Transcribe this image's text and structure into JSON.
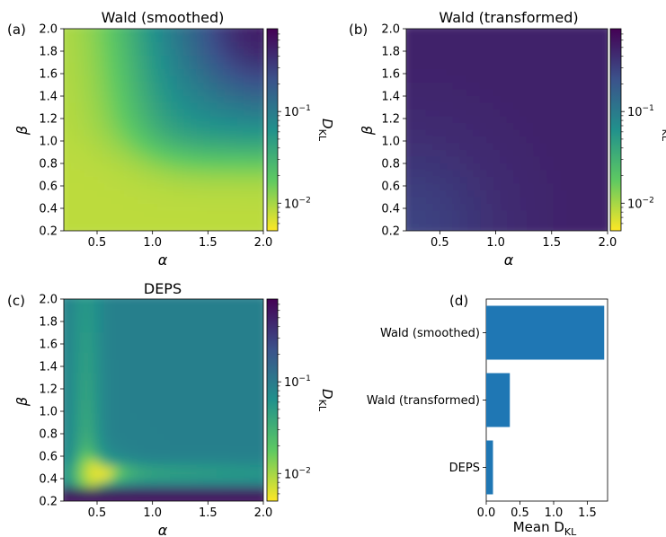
{
  "figure": {
    "colormap_stops": [
      "#fde725",
      "#5ec962",
      "#21918c",
      "#3b528b",
      "#440154"
    ]
  },
  "chart_data": [
    {
      "panel": "(a)",
      "type": "heatmap",
      "title": "Wald (smoothed)",
      "xlabel": "α",
      "ylabel": "β",
      "xlim": [
        0.2,
        2.0
      ],
      "ylim": [
        0.2,
        2.0
      ],
      "xticks": [
        "0.5",
        "1.0",
        "1.5",
        "2.0"
      ],
      "yticks": [
        "0.2",
        "0.4",
        "0.6",
        "0.8",
        "1.0",
        "1.2",
        "1.4",
        "1.6",
        "1.8",
        "2.0"
      ],
      "colorbar": {
        "label": "D",
        "label_sub": "KL",
        "scale": "log",
        "range": [
          0.005,
          0.8
        ],
        "ticks": [
          "10",
          "10"
        ],
        "tick_exps": [
          "−1",
          "−2"
        ]
      }
    },
    {
      "panel": "(b)",
      "type": "heatmap",
      "title": "Wald (transformed)",
      "xlabel": "α",
      "ylabel": "β",
      "xlim": [
        0.2,
        2.0
      ],
      "ylim": [
        0.2,
        2.0
      ],
      "xticks": [
        "0.5",
        "1.0",
        "1.5",
        "2.0"
      ],
      "yticks": [
        "0.2",
        "0.4",
        "0.6",
        "0.8",
        "1.0",
        "1.2",
        "1.4",
        "1.6",
        "1.8",
        "2.0"
      ],
      "colorbar": {
        "label": "D",
        "label_sub": "KL",
        "scale": "log",
        "range": [
          0.005,
          0.8
        ],
        "ticks": [
          "10",
          "10"
        ],
        "tick_exps": [
          "−1",
          "−2"
        ]
      }
    },
    {
      "panel": "(c)",
      "type": "heatmap",
      "title": "DEPS",
      "xlabel": "α",
      "ylabel": "β",
      "xlim": [
        0.2,
        2.0
      ],
      "ylim": [
        0.2,
        2.0
      ],
      "xticks": [
        "0.5",
        "1.0",
        "1.5",
        "2.0"
      ],
      "yticks": [
        "0.2",
        "0.4",
        "0.6",
        "0.8",
        "1.0",
        "1.2",
        "1.4",
        "1.6",
        "1.8",
        "2.0"
      ],
      "colorbar": {
        "label": "D",
        "label_sub": "KL",
        "scale": "log",
        "range": [
          0.005,
          0.8
        ],
        "ticks": [
          "10",
          "10"
        ],
        "tick_exps": [
          "−1",
          "−2"
        ]
      }
    },
    {
      "panel": "(d)",
      "type": "bar",
      "orientation": "horizontal",
      "categories": [
        "Wald (smoothed)",
        "Wald (transformed)",
        "DEPS"
      ],
      "values": [
        1.75,
        0.35,
        0.1
      ],
      "xlabel": "Mean D",
      "xlabel_sub": "KL",
      "xlim": [
        0,
        1.8
      ],
      "xticks": [
        "0.0",
        "0.5",
        "1.0",
        "1.5"
      ],
      "bar_color": "#1f77b4"
    }
  ]
}
